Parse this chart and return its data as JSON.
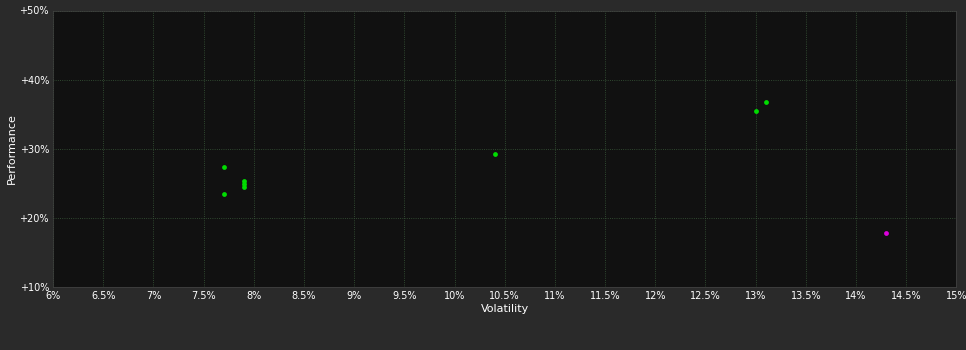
{
  "xlabel": "Volatility",
  "ylabel": "Performance",
  "fig_bg_color": "#2a2a2a",
  "plot_bg_color": "#111111",
  "grid_color": "#3a5a3a",
  "text_color": "#ffffff",
  "tick_color": "#ffffff",
  "spine_color": "#444444",
  "xlim": [
    0.06,
    0.15
  ],
  "ylim": [
    0.1,
    0.5
  ],
  "xticks": [
    0.06,
    0.065,
    0.07,
    0.075,
    0.08,
    0.085,
    0.09,
    0.095,
    0.1,
    0.105,
    0.11,
    0.115,
    0.12,
    0.125,
    0.13,
    0.135,
    0.14,
    0.145,
    0.15
  ],
  "yticks": [
    0.1,
    0.2,
    0.3,
    0.4,
    0.5
  ],
  "green_points": [
    [
      0.077,
      0.273
    ],
    [
      0.079,
      0.253
    ],
    [
      0.079,
      0.249
    ],
    [
      0.079,
      0.245
    ],
    [
      0.077,
      0.235
    ],
    [
      0.104,
      0.292
    ],
    [
      0.131,
      0.368
    ],
    [
      0.13,
      0.355
    ]
  ],
  "magenta_points": [
    [
      0.143,
      0.178
    ]
  ],
  "green_color": "#00dd00",
  "magenta_color": "#dd00dd",
  "dot_size": 12
}
